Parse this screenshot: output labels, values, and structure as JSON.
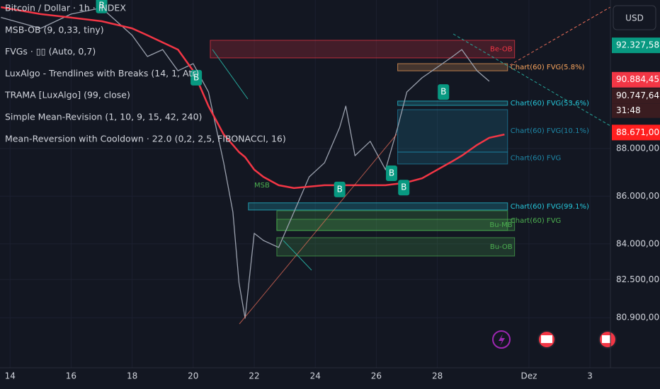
{
  "chart_data": {
    "type": "line",
    "x": [
      13.7,
      15,
      16,
      17,
      18,
      18.5,
      19,
      19.5,
      20,
      20.5,
      21,
      21.3,
      21.5,
      21.7,
      22,
      22.3,
      22.8,
      23.3,
      23.8,
      24.3,
      24.8,
      25,
      25.3,
      25.8,
      26.3,
      26.7,
      27,
      27.5,
      28,
      28.5,
      28.8,
      29.3,
      29.7,
      30.2
    ],
    "series": [
      {
        "name": "Bitcoin / Dollar · 1h · INDEX",
        "color": "#9aa0ad",
        "values": [
          93500,
          93040,
          93640,
          93900,
          92750,
          91860,
          92150,
          91260,
          91560,
          90370,
          87400,
          85330,
          82360,
          80880,
          84440,
          84140,
          83850,
          85330,
          86810,
          87400,
          88890,
          89780,
          87700,
          88300,
          87110,
          88890,
          90370,
          90970,
          91410,
          91860,
          92150,
          91260,
          90820,
          null
        ]
      },
      {
        "name": "TRAMA [LuxAlgo] (99, close)",
        "color": "#f23645",
        "values": [
          93930,
          93640,
          93490,
          93340,
          93040,
          92750,
          92450,
          92150,
          91260,
          89780,
          88590,
          88150,
          87850,
          87640,
          87110,
          86810,
          86460,
          86340,
          86400,
          86460,
          86460,
          86460,
          86460,
          86460,
          86460,
          86520,
          86580,
          86750,
          87110,
          87470,
          87700,
          88150,
          88450,
          88590
        ]
      }
    ],
    "indicators": [
      "MSB-OB (9, 0,33, tiny)",
      "FVGs · ▯▯ (Auto, 0,7)",
      "LuxAlgo - Trendlines with Breaks (14, 1, Atr)",
      "Simple Mean-Revision (1, 10, 9, 15, 42, 240)",
      "Mean-Reversion with Cooldown · 22.0 (0,2, 2,5, FIBONACCI, 16)"
    ],
    "xlim": [
      13.67,
      33.67
    ],
    "xticks": [
      14,
      16,
      18,
      20,
      22,
      24,
      26,
      28,
      {
        "value": 31,
        "label": "Dez"
      },
      {
        "value": 33,
        "label": "3"
      }
    ],
    "ylim": [
      78800,
      94230
    ],
    "yticks": [
      {
        "value": 88000,
        "label": "88.000,00"
      },
      {
        "value": 86000,
        "label": "86.000,00"
      },
      {
        "value": 84000,
        "label": "84.000,00"
      },
      {
        "value": 82500,
        "label": "82.500,00"
      },
      {
        "value": 80900,
        "label": "80.900,00"
      }
    ],
    "grid": true,
    "zones": [
      {
        "label": "Be-OB",
        "color": "#f23645",
        "x": [
          20.56,
          30.53
        ],
        "y": [
          91800,
          92540
        ],
        "label_inside": true
      },
      {
        "label": "Chart(60) FVG(5.8%)",
        "color": "#f7a35c",
        "x": [
          26.7,
          30.3
        ],
        "y": [
          91260,
          91560
        ],
        "label_inside": false
      },
      {
        "label": "Chart(60) FVG(53.6%)",
        "color": "#26c6da",
        "x": [
          26.7,
          30.3
        ],
        "y": [
          89810,
          89990
        ],
        "label_inside": false
      },
      {
        "label": "Chart(60) FVG(10.1%)",
        "color": "#1e88a8",
        "x": [
          26.7,
          30.3
        ],
        "y": [
          87850,
          89630
        ],
        "label_inside": false
      },
      {
        "label": "Chart(60) FVG",
        "color": "#1e88a8",
        "x": [
          26.7,
          30.3
        ],
        "y": [
          87350,
          87850
        ],
        "label_inside": false
      },
      {
        "label": "Chart(60) FVG(99.1%)",
        "color": "#26c6da",
        "x": [
          21.81,
          30.3
        ],
        "y": [
          85420,
          85720
        ],
        "label_inside": false
      },
      {
        "label": "Chart(60) FVG",
        "color": "#4caf50",
        "x": [
          22.74,
          30.3
        ],
        "y": [
          84560,
          85390
        ],
        "label_inside": false
      },
      {
        "label": "Bu-MB",
        "color": "#4caf50",
        "x": [
          22.74,
          30.53
        ],
        "y": [
          84560,
          85030
        ],
        "label_inside": true
      },
      {
        "label": "Bu-OB",
        "color": "#4caf50",
        "x": [
          22.74,
          30.53
        ],
        "y": [
          83490,
          84260
        ],
        "label_inside": true
      }
    ],
    "annotations": [
      {
        "text": "MSB",
        "x": 22.0,
        "y": 86460
      }
    ],
    "signals": [
      {
        "label": "B",
        "x": 17.0,
        "y": 94000
      },
      {
        "label": "B",
        "x": 20.1,
        "y": 90970
      },
      {
        "label": "B",
        "x": 24.8,
        "y": 86280
      },
      {
        "label": "B",
        "x": 26.5,
        "y": 86960
      },
      {
        "label": "B",
        "x": 26.9,
        "y": 86360
      },
      {
        "label": "B",
        "x": 28.2,
        "y": 90370
      }
    ],
    "price_tags": [
      {
        "value": 92327.58,
        "label": "92.327,58",
        "color": "#089981"
      },
      {
        "value": 90884.45,
        "label": "90.884,45",
        "color": "#f23645"
      },
      {
        "value": 90747.64,
        "label": "90.747,64",
        "color": "#3a1c20"
      },
      {
        "value": 88671,
        "label": "88.671,00",
        "color": "#ff1f1f"
      }
    ],
    "countdown": "31:48",
    "currency": "USD"
  }
}
